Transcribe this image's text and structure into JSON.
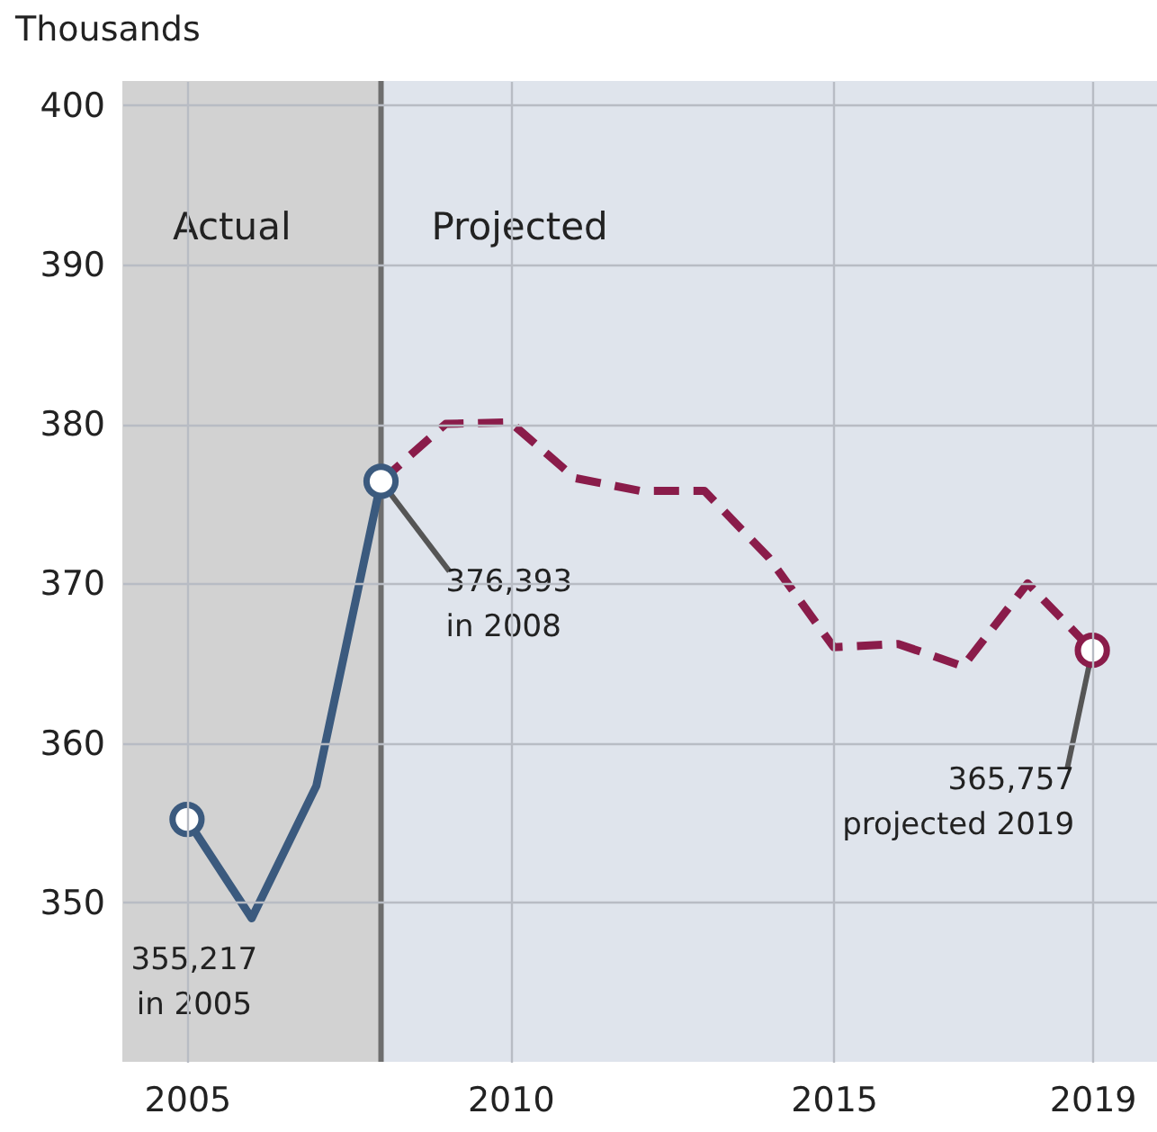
{
  "chart_data": {
    "type": "line",
    "ylabel": "Thousands",
    "xlim": [
      2004,
      2020
    ],
    "xticks": [
      2005,
      2010,
      2015,
      2019
    ],
    "ylim": [
      340,
      401.5
    ],
    "yticks": [
      350,
      360,
      370,
      380,
      390,
      400
    ],
    "grid": true,
    "series": [
      {
        "color": "#3b5a7e",
        "line_style": "solid",
        "x": [
          2005,
          2006,
          2007,
          2008
        ],
        "values": [
          355.2,
          349.0,
          357.3,
          376.4
        ]
      },
      {
        "color": "#8a1c4a",
        "line_style": "dashed",
        "x": [
          2008,
          2009,
          2010,
          2011,
          2012,
          2013,
          2014,
          2015,
          2016,
          2017,
          2018,
          2019
        ],
        "values": [
          376.4,
          380.0,
          380.1,
          376.6,
          375.8,
          375.8,
          371.6,
          366.0,
          366.2,
          364.8,
          370.0,
          365.8
        ]
      }
    ],
    "bands": [
      {
        "axis": "x",
        "from": 2004,
        "to": 2008,
        "label": "Actual",
        "color": "#d2d2d2"
      },
      {
        "axis": "x",
        "from": 2008,
        "to": 2020,
        "label": "Projected",
        "color": "#dfe4ec"
      }
    ],
    "ref_lines": [
      {
        "axis": "x",
        "value": 2008,
        "color": "#6e6e6e"
      }
    ],
    "annotations": [
      "355,217\nin 2005",
      {
        "text": "376,393\nin 2008",
        "x": 2008,
        "y": 376.4
      },
      {
        "text": "365,757\nprojected 2019",
        "x": 2019,
        "y": 365.8
      }
    ]
  }
}
